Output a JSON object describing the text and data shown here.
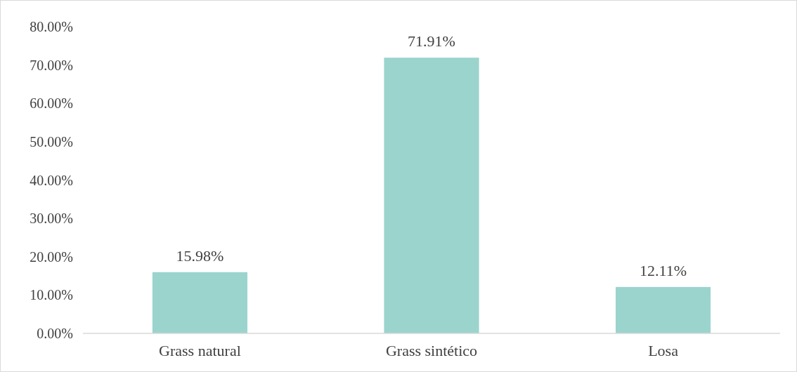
{
  "chart_data": {
    "type": "bar",
    "categories": [
      "Grass natural",
      "Grass sintético",
      "Losa"
    ],
    "values": [
      15.98,
      71.91,
      12.11
    ],
    "value_labels": [
      "15.98%",
      "71.91%",
      "12.11%"
    ],
    "color": "#9bd4cd",
    "ylim": [
      0,
      80
    ],
    "yticks": [
      {
        "value": 0,
        "label": "0.00%"
      },
      {
        "value": 10,
        "label": "10.00%"
      },
      {
        "value": 20,
        "label": "20.00%"
      },
      {
        "value": 30,
        "label": "30.00%"
      },
      {
        "value": 40,
        "label": "40.00%"
      },
      {
        "value": 50,
        "label": "50.00%"
      },
      {
        "value": 60,
        "label": "60.00%"
      },
      {
        "value": 70,
        "label": "70.00%"
      },
      {
        "value": 80,
        "label": "80.00%"
      }
    ],
    "grid": false
  }
}
